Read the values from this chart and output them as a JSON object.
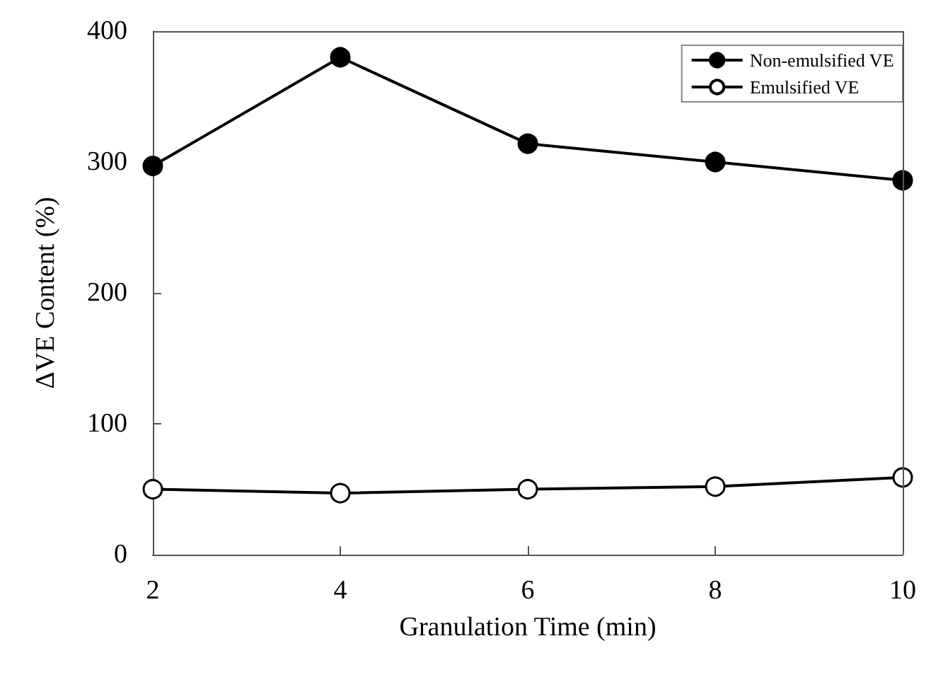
{
  "chart_data": {
    "type": "line",
    "xlabel": "Granulation Time (min)",
    "ylabel": "ΔVE Content (%)",
    "x": [
      2,
      4,
      6,
      8,
      10
    ],
    "series": [
      {
        "name": "Non-emulsified VE",
        "color": "#000000",
        "marker": "circle",
        "values": [
          297,
          380,
          314,
          300,
          286
        ]
      },
      {
        "name": "Emulsified VE",
        "color": "#000000",
        "marker": "circle",
        "values": [
          50,
          47,
          50,
          52,
          59
        ]
      }
    ],
    "xlim": [
      2,
      10
    ],
    "xticks": [
      2,
      4,
      6,
      8,
      10
    ],
    "ylim": [
      0,
      400
    ],
    "yticks": [
      0,
      100,
      200,
      300,
      400
    ],
    "grid": false,
    "legend": "top right",
    "line_style": "solid"
  }
}
